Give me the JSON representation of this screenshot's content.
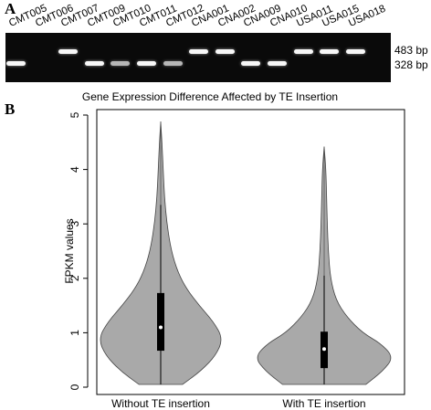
{
  "panel_a": {
    "label": "A",
    "lanes": [
      {
        "name": "CMT005",
        "band": "328"
      },
      {
        "name": "CMT006",
        "band": "none"
      },
      {
        "name": "CMT007",
        "band": "483"
      },
      {
        "name": "CMT009",
        "band": "328"
      },
      {
        "name": "CMT010",
        "band": "328-faint"
      },
      {
        "name": "CMT011",
        "band": "328"
      },
      {
        "name": "CMT012",
        "band": "328-faint"
      },
      {
        "name": "CNA001",
        "band": "483"
      },
      {
        "name": "CNA002",
        "band": "483"
      },
      {
        "name": "CNA009",
        "band": "328"
      },
      {
        "name": "CNA010",
        "band": "328"
      },
      {
        "name": "USA011",
        "band": "483"
      },
      {
        "name": "USA015",
        "band": "483"
      },
      {
        "name": "USA018",
        "band": "483"
      }
    ],
    "size_markers": [
      "483 bp",
      "328 bp"
    ],
    "colors": {
      "gel": "#0a0a0a",
      "band": "#ffffff"
    }
  },
  "panel_b": {
    "label": "B"
  },
  "chart_data": {
    "type": "violin",
    "title": "Gene Expression Difference Affected by TE Insertion",
    "xlabel": "",
    "ylabel": "FPKM values",
    "categories": [
      "Without TE insertion",
      "With TE insertion"
    ],
    "ylim": [
      0,
      5
    ],
    "yticks": [
      0,
      1,
      2,
      3,
      4,
      5
    ],
    "grid": false,
    "violins": [
      {
        "name": "Without TE insertion",
        "max": 4.88,
        "min": 0.05,
        "q1": 0.67,
        "median": 1.1,
        "q3": 1.73,
        "whisker_high": 3.35,
        "density_profile": [
          [
            0.05,
            0.35
          ],
          [
            0.3,
            0.65
          ],
          [
            0.6,
            0.9
          ],
          [
            0.9,
            1.0
          ],
          [
            1.2,
            0.85
          ],
          [
            1.5,
            0.62
          ],
          [
            1.8,
            0.42
          ],
          [
            2.1,
            0.28
          ],
          [
            2.5,
            0.17
          ],
          [
            3.0,
            0.1
          ],
          [
            3.5,
            0.06
          ],
          [
            4.0,
            0.04
          ],
          [
            4.5,
            0.02
          ],
          [
            4.88,
            0.0
          ]
        ]
      },
      {
        "name": "With TE insertion",
        "max": 4.42,
        "min": 0.05,
        "q1": 0.35,
        "median": 0.7,
        "q3": 1.02,
        "whisker_high": 2.05,
        "density_profile": [
          [
            0.05,
            0.6
          ],
          [
            0.3,
            0.85
          ],
          [
            0.55,
            1.0
          ],
          [
            0.8,
            0.82
          ],
          [
            1.0,
            0.55
          ],
          [
            1.3,
            0.32
          ],
          [
            1.6,
            0.17
          ],
          [
            2.0,
            0.09
          ],
          [
            2.5,
            0.06
          ],
          [
            3.0,
            0.045
          ],
          [
            3.5,
            0.035
          ],
          [
            4.0,
            0.025
          ],
          [
            4.42,
            0.0
          ]
        ]
      }
    ],
    "colors": {
      "violin_fill": "#a9a9a9",
      "violin_stroke": "#444444",
      "box": "#000000",
      "median": "#ffffff"
    }
  }
}
